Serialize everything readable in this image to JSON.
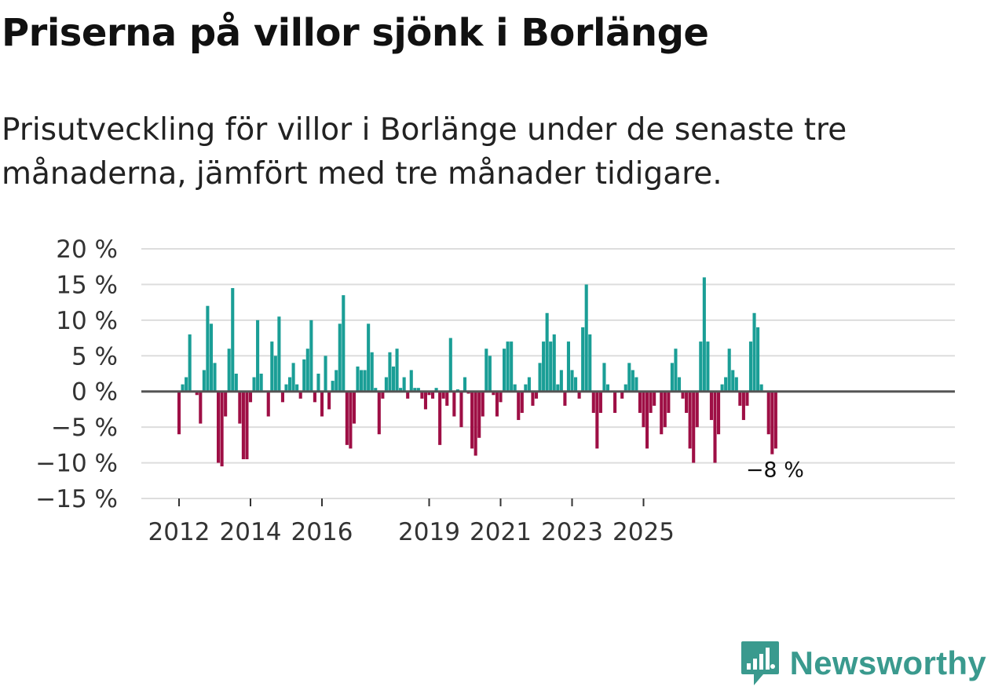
{
  "header": {
    "title": "Priserna på villor sjönk i Borlänge",
    "subtitle": "Prisutveckling för villor i Borlänge under de senaste tre månaderna, jämfört med tre månader tidigare."
  },
  "colors": {
    "positive": "#1a9e96",
    "negative": "#9e0f45",
    "grid": "#dddddd",
    "zero": "#555555"
  },
  "chart_data": {
    "type": "bar",
    "title": "Priserna på villor sjönk i Borlänge",
    "xlabel": "",
    "ylabel": "",
    "ylim": [
      -15,
      20
    ],
    "yticks": [
      -15,
      -10,
      -5,
      0,
      5,
      10,
      15,
      20
    ],
    "ytick_labels": [
      "−15 %",
      "−10 %",
      "−5 %",
      "0 %",
      "5 %",
      "10 %",
      "15 %",
      "20 %"
    ],
    "xticks": [
      {
        "label": "2012",
        "index": 0
      },
      {
        "label": "2014",
        "index": 20
      },
      {
        "label": "2016",
        "index": 40
      },
      {
        "label": "2019",
        "index": 70
      },
      {
        "label": "2021",
        "index": 90
      },
      {
        "label": "2023",
        "index": 110
      },
      {
        "label": "2025",
        "index": 130
      }
    ],
    "values": [
      -6,
      1,
      2,
      8,
      0,
      -0.5,
      -4.5,
      3,
      12,
      9.5,
      4,
      -10,
      -10.5,
      -3.5,
      6,
      14.5,
      2.5,
      -4.5,
      -9.5,
      -9.5,
      -1.5,
      2,
      10,
      2.5,
      0,
      -3.5,
      7,
      5,
      10.5,
      -1.5,
      1,
      2,
      4,
      1,
      -1,
      4.5,
      6,
      10,
      -1.5,
      2.5,
      -3.5,
      5,
      -2.5,
      1.5,
      3,
      9.5,
      13.5,
      -7.5,
      -8,
      -4.5,
      3.5,
      3,
      3,
      9.5,
      5.5,
      0.5,
      -6,
      -1,
      2,
      5.5,
      3.5,
      6,
      0.5,
      2,
      -1,
      3,
      0.5,
      0.5,
      -1,
      -2.5,
      -0.5,
      -1,
      0.5,
      -7.5,
      -1,
      -2,
      7.5,
      -3.5,
      0.3,
      -5,
      2,
      -0.3,
      -8,
      -9,
      -6.5,
      -3.5,
      6,
      5,
      -0.5,
      -3.5,
      -1.5,
      6,
      7,
      7,
      1,
      -4,
      -3,
      1,
      2,
      -2,
      -1,
      4,
      7,
      11,
      7,
      8,
      1,
      3,
      -2,
      7,
      3,
      2,
      -1,
      9,
      15,
      8,
      -3,
      -8,
      -3,
      4,
      1,
      0,
      -3,
      0,
      -1,
      1,
      4,
      3,
      2,
      -3,
      -5,
      -8,
      -3,
      -2,
      0,
      -6,
      -5,
      -3,
      4,
      6,
      2,
      -1,
      -3,
      -8,
      -10,
      -5,
      7,
      16,
      7,
      -4,
      -10,
      -6,
      1,
      2,
      6,
      3,
      2,
      -2,
      -4,
      -2,
      7,
      11,
      9,
      1,
      0,
      -6,
      -8.8,
      -8
    ],
    "annotation": {
      "label": "−8 %",
      "value": -8
    }
  },
  "logo": {
    "icon": "newsworthy-logo-icon",
    "text": "Newsworthy"
  }
}
